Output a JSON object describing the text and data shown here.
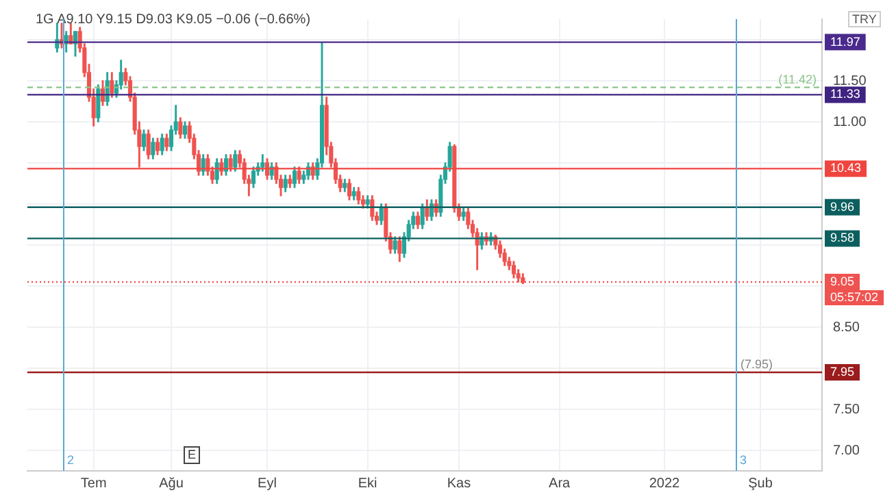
{
  "chart_data": {
    "type": "candlestick",
    "title": "1G  A9.10 Y9.15 D9.03 K9.05 −0.06 (−0.66%)",
    "ylabel": "TRY",
    "categories": [
      null,
      null,
      null,
      null,
      null,
      null,
      null,
      null,
      null,
      null,
      null,
      null,
      null,
      null,
      "Tem",
      null,
      null,
      null,
      null,
      null,
      null,
      null,
      null,
      null,
      null,
      null,
      null,
      null,
      null,
      null,
      null,
      "Ağu",
      null,
      null,
      null,
      null,
      null,
      null,
      null,
      null,
      null,
      null,
      null,
      null,
      null,
      null,
      null,
      null,
      null,
      null,
      null,
      null,
      "Eyl",
      null,
      null,
      null,
      null,
      null,
      null,
      null,
      null,
      null,
      null,
      null,
      null,
      null,
      null,
      null,
      null,
      null,
      null,
      null,
      null,
      null,
      "Eki",
      null,
      null,
      null,
      null,
      null,
      null,
      null,
      null,
      null,
      null,
      null,
      null,
      null,
      null,
      null,
      null,
      null,
      null,
      null,
      "Kas",
      null,
      null,
      null,
      null,
      null,
      null,
      null,
      null,
      null,
      null,
      null,
      null,
      null,
      null,
      null,
      null,
      null,
      null,
      null,
      null,
      null,
      "Ara",
      null,
      null,
      null,
      null,
      null,
      null,
      null,
      null,
      null,
      null,
      null,
      null,
      null,
      null,
      null,
      null,
      null,
      null,
      null,
      null,
      null,
      null,
      "2022",
      null,
      null,
      null,
      null,
      null,
      null,
      null,
      null,
      null,
      null,
      null,
      null,
      null,
      null,
      null,
      null,
      null,
      null,
      null,
      null,
      "Şub",
      null,
      null,
      null,
      null,
      null,
      null,
      null,
      null,
      null,
      null,
      null,
      null,
      null
    ],
    "ohlc": [
      null,
      null,
      null,
      null,
      null,
      null,
      [
        11.9,
        12.2,
        11.85,
        12.0
      ],
      [
        12.0,
        12.2,
        11.9,
        11.95
      ],
      [
        11.95,
        12.1,
        11.85,
        12.05
      ],
      [
        12.05,
        12.2,
        11.95,
        11.95
      ],
      [
        11.95,
        12.1,
        11.8,
        12.1
      ],
      [
        12.1,
        12.15,
        11.85,
        11.9
      ],
      [
        11.9,
        11.95,
        11.55,
        11.6
      ],
      [
        11.6,
        11.7,
        11.25,
        11.3
      ],
      [
        11.3,
        11.4,
        10.95,
        11.05
      ],
      [
        11.05,
        11.45,
        11.0,
        11.4
      ],
      [
        11.4,
        11.5,
        11.2,
        11.25
      ],
      [
        11.25,
        11.6,
        11.2,
        11.5
      ],
      [
        11.5,
        11.6,
        11.3,
        11.35
      ],
      [
        11.35,
        11.5,
        11.3,
        11.45
      ],
      [
        11.45,
        11.75,
        11.4,
        11.6
      ],
      [
        11.6,
        11.65,
        11.45,
        11.5
      ],
      [
        11.5,
        11.55,
        11.25,
        11.3
      ],
      [
        11.3,
        11.35,
        10.85,
        10.9
      ],
      [
        10.9,
        11.0,
        10.45,
        10.7
      ],
      [
        10.7,
        10.9,
        10.65,
        10.85
      ],
      [
        10.85,
        10.9,
        10.55,
        10.6
      ],
      [
        10.6,
        10.8,
        10.55,
        10.75
      ],
      [
        10.75,
        10.8,
        10.6,
        10.65
      ],
      [
        10.65,
        10.85,
        10.6,
        10.8
      ],
      [
        10.8,
        10.85,
        10.65,
        10.7
      ],
      [
        10.7,
        10.95,
        10.65,
        10.9
      ],
      [
        10.9,
        11.2,
        10.85,
        11.0
      ],
      [
        11.0,
        11.05,
        10.8,
        10.85
      ],
      [
        10.85,
        11.0,
        10.8,
        10.95
      ],
      [
        10.95,
        11.0,
        10.75,
        10.8
      ],
      [
        10.8,
        10.85,
        10.55,
        10.6
      ],
      [
        10.6,
        10.65,
        10.35,
        10.4
      ],
      [
        10.4,
        10.6,
        10.35,
        10.55
      ],
      [
        10.55,
        10.6,
        10.35,
        10.4
      ],
      [
        10.4,
        10.45,
        10.25,
        10.3
      ],
      [
        10.3,
        10.55,
        10.25,
        10.5
      ],
      [
        10.5,
        10.55,
        10.35,
        10.4
      ],
      [
        10.4,
        10.6,
        10.35,
        10.55
      ],
      [
        10.55,
        10.6,
        10.4,
        10.45
      ],
      [
        10.45,
        10.65,
        10.4,
        10.6
      ],
      [
        10.6,
        10.65,
        10.45,
        10.5
      ],
      [
        10.5,
        10.55,
        10.25,
        10.3
      ],
      [
        10.3,
        10.35,
        10.1,
        10.25
      ],
      [
        10.25,
        10.45,
        10.2,
        10.4
      ],
      [
        10.4,
        10.5,
        10.35,
        10.45
      ],
      [
        10.45,
        10.6,
        10.4,
        10.5
      ],
      [
        10.5,
        10.55,
        10.3,
        10.35
      ],
      [
        10.35,
        10.5,
        10.3,
        10.45
      ],
      [
        10.45,
        10.5,
        10.25,
        10.3
      ],
      [
        10.3,
        10.35,
        10.1,
        10.2
      ],
      [
        10.2,
        10.35,
        10.15,
        10.3
      ],
      [
        10.3,
        10.35,
        10.2,
        10.25
      ],
      [
        10.25,
        10.45,
        10.2,
        10.4
      ],
      [
        10.4,
        10.45,
        10.25,
        10.3
      ],
      [
        10.3,
        10.4,
        10.25,
        10.35
      ],
      [
        10.35,
        10.5,
        10.3,
        10.45
      ],
      [
        10.45,
        10.5,
        10.3,
        10.35
      ],
      [
        10.35,
        10.55,
        10.3,
        10.5
      ],
      [
        10.5,
        11.97,
        10.45,
        11.2
      ],
      [
        11.2,
        11.3,
        10.6,
        10.7
      ],
      [
        10.7,
        10.75,
        10.45,
        10.5
      ],
      [
        10.5,
        10.55,
        10.25,
        10.3
      ],
      [
        10.3,
        10.35,
        10.15,
        10.2
      ],
      [
        10.2,
        10.3,
        10.15,
        10.25
      ],
      [
        10.25,
        10.3,
        10.05,
        10.1
      ],
      [
        10.1,
        10.2,
        10.05,
        10.15
      ],
      [
        10.15,
        10.2,
        10.0,
        10.05
      ],
      [
        10.05,
        10.1,
        9.95,
        10.0
      ],
      [
        10.0,
        10.1,
        9.95,
        10.05
      ],
      [
        10.05,
        10.1,
        9.8,
        9.85
      ],
      [
        9.85,
        9.9,
        9.75,
        9.8
      ],
      [
        9.8,
        10.0,
        9.75,
        9.95
      ],
      [
        9.95,
        10.0,
        9.55,
        9.6
      ],
      [
        9.6,
        9.65,
        9.4,
        9.45
      ],
      [
        9.45,
        9.6,
        9.4,
        9.55
      ],
      [
        9.55,
        9.6,
        9.3,
        9.4
      ],
      [
        9.4,
        9.65,
        9.35,
        9.6
      ],
      [
        9.6,
        9.8,
        9.55,
        9.75
      ],
      [
        9.75,
        9.9,
        9.7,
        9.85
      ],
      [
        9.85,
        9.9,
        9.7,
        9.75
      ],
      [
        9.75,
        10.0,
        9.7,
        9.95
      ],
      [
        9.95,
        10.05,
        9.8,
        9.85
      ],
      [
        9.85,
        10.05,
        9.8,
        10.0
      ],
      [
        10.0,
        10.05,
        9.85,
        9.9
      ],
      [
        9.9,
        10.35,
        9.85,
        10.3
      ],
      [
        10.3,
        10.5,
        10.25,
        10.45
      ],
      [
        10.45,
        10.75,
        10.4,
        10.7
      ],
      [
        10.7,
        10.72,
        9.9,
        9.95
      ],
      [
        9.95,
        10.0,
        9.8,
        9.85
      ],
      [
        9.85,
        9.95,
        9.8,
        9.9
      ],
      [
        9.9,
        9.95,
        9.7,
        9.75
      ],
      [
        9.75,
        9.8,
        9.6,
        9.65
      ],
      [
        9.65,
        9.7,
        9.2,
        9.5
      ],
      [
        9.5,
        9.65,
        9.45,
        9.6
      ],
      [
        9.6,
        9.65,
        9.5,
        9.55
      ],
      [
        9.55,
        9.65,
        9.5,
        9.6
      ],
      [
        9.6,
        9.62,
        9.45,
        9.5
      ],
      [
        9.5,
        9.55,
        9.35,
        9.4
      ],
      [
        9.4,
        9.45,
        9.25,
        9.3
      ],
      [
        9.3,
        9.35,
        9.2,
        9.25
      ],
      [
        9.25,
        9.3,
        9.1,
        9.15
      ],
      [
        9.15,
        9.2,
        9.05,
        9.1
      ],
      [
        9.1,
        9.15,
        9.03,
        9.05
      ],
      null,
      null,
      null,
      null,
      null,
      null,
      null,
      null,
      null,
      null,
      null,
      null,
      null,
      null,
      null,
      null,
      null,
      null,
      null,
      null,
      null,
      null,
      null,
      null,
      null,
      null,
      null,
      null,
      null,
      null,
      null,
      null,
      null,
      null,
      null,
      null,
      null,
      null,
      null,
      null,
      null,
      null,
      null,
      null,
      null,
      null,
      null,
      null,
      null,
      null,
      null,
      null,
      null,
      null,
      null,
      null,
      null,
      null,
      null,
      null,
      null,
      null,
      null,
      null,
      null
    ],
    "colors": [
      null,
      null,
      null,
      null,
      null,
      null,
      "#26a69a",
      "#ef5350",
      "#26a69a",
      "#ef5350",
      "#26a69a",
      "#ef5350",
      "#ef5350",
      "#ef5350",
      "#ef5350",
      "#26a69a",
      "#ef5350",
      "#26a69a",
      "#ef5350",
      "#26a69a",
      "#26a69a",
      "#ef5350",
      "#ef5350",
      "#ef5350",
      "#ef5350",
      "#26a69a",
      "#ef5350",
      "#26a69a",
      "#ef5350",
      "#26a69a",
      "#ef5350",
      "#26a69a",
      "#26a69a",
      "#ef5350",
      "#26a69a",
      "#ef5350",
      "#ef5350",
      "#ef5350",
      "#26a69a",
      "#ef5350",
      "#ef5350",
      "#26a69a",
      "#ef5350",
      "#26a69a",
      "#ef5350",
      "#26a69a",
      "#ef5350",
      "#ef5350",
      "#ef5350",
      "#26a69a",
      "#26a69a",
      "#26a69a",
      "#ef5350",
      "#26a69a",
      "#ef5350",
      "#ef5350",
      "#26a69a",
      "#ef5350",
      "#26a69a",
      "#ef5350",
      "#26a69a",
      "#26a69a",
      "#ef5350",
      "#26a69a",
      "#26a69a",
      "#ef5350",
      "#ef5350",
      "#ef5350",
      "#ef5350",
      "#26a69a",
      "#ef5350",
      "#26a69a",
      "#ef5350",
      "#ef5350",
      "#26a69a",
      "#ef5350",
      "#ef5350",
      "#26a69a",
      "#ef5350",
      "#ef5350",
      "#26a69a",
      "#ef5350",
      "#26a69a",
      "#26a69a",
      "#26a69a",
      "#ef5350",
      "#26a69a",
      "#ef5350",
      "#26a69a",
      "#ef5350",
      "#26a69a",
      "#26a69a",
      "#26a69a",
      "#ef5350",
      "#ef5350",
      "#26a69a",
      "#ef5350",
      "#ef5350",
      "#ef5350",
      "#26a69a",
      "#ef5350",
      "#26a69a",
      "#ef5350",
      "#ef5350",
      "#ef5350",
      "#ef5350",
      "#ef5350",
      "#ef5350",
      "#ef5350",
      null,
      null,
      null,
      null,
      null,
      null,
      null,
      null,
      null,
      null,
      null,
      null,
      null,
      null,
      null,
      null,
      null,
      null,
      null,
      null,
      null,
      null,
      null,
      null,
      null,
      null,
      null,
      null,
      null,
      null,
      null,
      null,
      null,
      null,
      null,
      null,
      null,
      null,
      null,
      null,
      null,
      null,
      null,
      null,
      null,
      null,
      null,
      null,
      null,
      null,
      null,
      null,
      null,
      null,
      null,
      null,
      null,
      null,
      null,
      null,
      null,
      null,
      null,
      null,
      null
    ],
    "ylim": [
      6.75,
      12.25
    ],
    "yticks": [
      {
        "value": 7,
        "label": "7.00"
      },
      {
        "value": 7.5,
        "label": "7.50"
      },
      {
        "value": 8,
        "label": null
      },
      {
        "value": 8.5,
        "label": "8.50"
      },
      {
        "value": 9,
        "label": null
      },
      {
        "value": 9.5,
        "label": null
      },
      {
        "value": 10,
        "label": null
      },
      {
        "value": 10.5,
        "label": null
      },
      {
        "value": 11,
        "label": "11.00"
      },
      {
        "value": 11.5,
        "label": "11.50"
      },
      {
        "value": 12,
        "label": null
      }
    ],
    "grid": true,
    "legend": false,
    "ref_lines": [
      {
        "axis": "y",
        "value": 11.97,
        "label": "11.97",
        "color": "#4a2a8c",
        "line_style": "solid"
      },
      {
        "axis": "y",
        "value": 11.42,
        "label": "(11.42)",
        "color": "#8bc48a",
        "line_style": "dashed"
      },
      {
        "axis": "y",
        "value": 11.33,
        "label": "11.33",
        "color": "#3f2380",
        "line_style": "solid"
      },
      {
        "axis": "y",
        "value": 10.43,
        "label": "10.43",
        "color": "#f0453f",
        "line_style": "solid"
      },
      {
        "axis": "y",
        "value": 9.96,
        "label": "9.96",
        "color": "#0d5f5f",
        "line_style": "solid"
      },
      {
        "axis": "y",
        "value": 9.58,
        "label": "9.58",
        "color": "#0d5f5f",
        "line_style": "solid"
      },
      {
        "axis": "y",
        "value": 9.05,
        "label": "9.05",
        "color": "#ef5350",
        "line_style": "dotted"
      },
      {
        "axis": "y",
        "value": 7.95,
        "label": "7.95",
        "color": "#9b1c1c",
        "line_style": "solid"
      }
    ],
    "annotations": [
      "05:57:02",
      "2",
      "3",
      "E",
      {
        "text": "(7.95)",
        "y": 7.95
      }
    ]
  }
}
